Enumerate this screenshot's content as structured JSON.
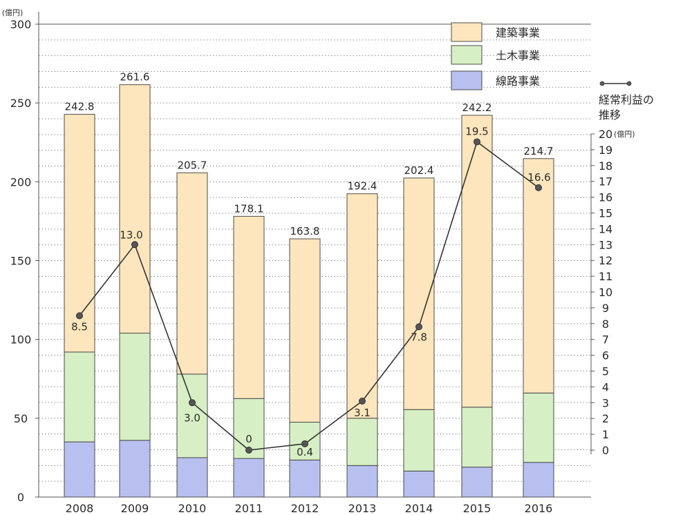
{
  "chart_data": {
    "type": "bar",
    "categories": [
      "2008",
      "2009",
      "2010",
      "2011",
      "2012",
      "2013",
      "2014",
      "2015",
      "2016"
    ],
    "left_axis": {
      "unit": "(億円)",
      "ylim": [
        0,
        300
      ],
      "ticks": [
        "0",
        "50",
        "100",
        "150",
        "200",
        "250",
        "300"
      ]
    },
    "right_axis": {
      "unit": "(億円)",
      "ylim": [
        0,
        20
      ],
      "ticks": [
        "0",
        "1",
        "2",
        "3",
        "4",
        "5",
        "6",
        "7",
        "8",
        "9",
        "10",
        "11",
        "12",
        "13",
        "14",
        "15",
        "16",
        "17",
        "18",
        "19",
        "20"
      ]
    },
    "series": [
      {
        "name": "線路事業",
        "color": "#b7c0ef",
        "values": [
          35,
          36,
          25,
          24.5,
          23.5,
          20,
          16.5,
          19,
          22
        ]
      },
      {
        "name": "土木事業",
        "color": "#d7efc4",
        "values": [
          57,
          68,
          53,
          38,
          24,
          30,
          39,
          38,
          44
        ]
      },
      {
        "name": "建築事業",
        "color": "#fde6bd",
        "values": [
          150.8,
          157.6,
          127.7,
          115.6,
          116.3,
          142.4,
          146.9,
          185.2,
          148.7
        ]
      }
    ],
    "totals": [
      "242.8",
      "261.6",
      "205.7",
      "178.1",
      "163.8",
      "192.4",
      "202.4",
      "242.2",
      "214.7"
    ],
    "line": {
      "name_line1": "経常利益の",
      "name_line2": "推移",
      "values": [
        8.5,
        13.0,
        3.0,
        0,
        0.4,
        3.1,
        7.8,
        19.5,
        16.6
      ],
      "labels": [
        "8.5",
        "13.0",
        "3.0",
        "0",
        "0.4",
        "3.1",
        "7.8",
        "19.5",
        "16.6"
      ]
    },
    "legend_position": "top-right",
    "grid": true
  }
}
